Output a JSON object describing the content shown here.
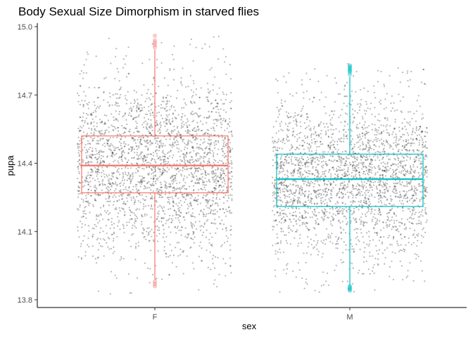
{
  "chart_data": {
    "type": "boxplot",
    "title": "Body Sexual Size Dimorphism in starved flies",
    "xlabel": "sex",
    "ylabel": "pupa",
    "categories": [
      "F",
      "M"
    ],
    "ylim": [
      13.77,
      15.02
    ],
    "yticks": [
      13.8,
      14.1,
      14.4,
      14.7,
      15.0
    ],
    "ytick_labels": [
      "13.8",
      "14.1",
      "14.4",
      "14.7",
      "15.0"
    ],
    "grid": false,
    "legend": "none",
    "jitter_points": true,
    "boxes": [
      {
        "name": "F",
        "color": "#F8766D",
        "whisker_low": 13.89,
        "q1": 14.27,
        "median": 14.39,
        "q3": 14.52,
        "whisker_high": 14.9,
        "outliers": [
          13.86,
          13.87,
          13.88,
          14.91,
          14.92,
          14.93,
          14.94,
          14.96
        ],
        "point_range": [
          13.82,
          14.97
        ]
      },
      {
        "name": "M",
        "color": "#00BFC4",
        "whisker_low": 13.86,
        "q1": 14.21,
        "median": 14.33,
        "q3": 14.44,
        "whisker_high": 14.78,
        "outliers": [
          13.84,
          13.845,
          13.85,
          13.855,
          13.86,
          14.79,
          14.8,
          14.805,
          14.81,
          14.815,
          14.82,
          14.825,
          14.83
        ],
        "point_range": [
          13.83,
          14.84
        ]
      }
    ],
    "colors": {
      "points": "#000000",
      "axis": "#000000"
    }
  }
}
